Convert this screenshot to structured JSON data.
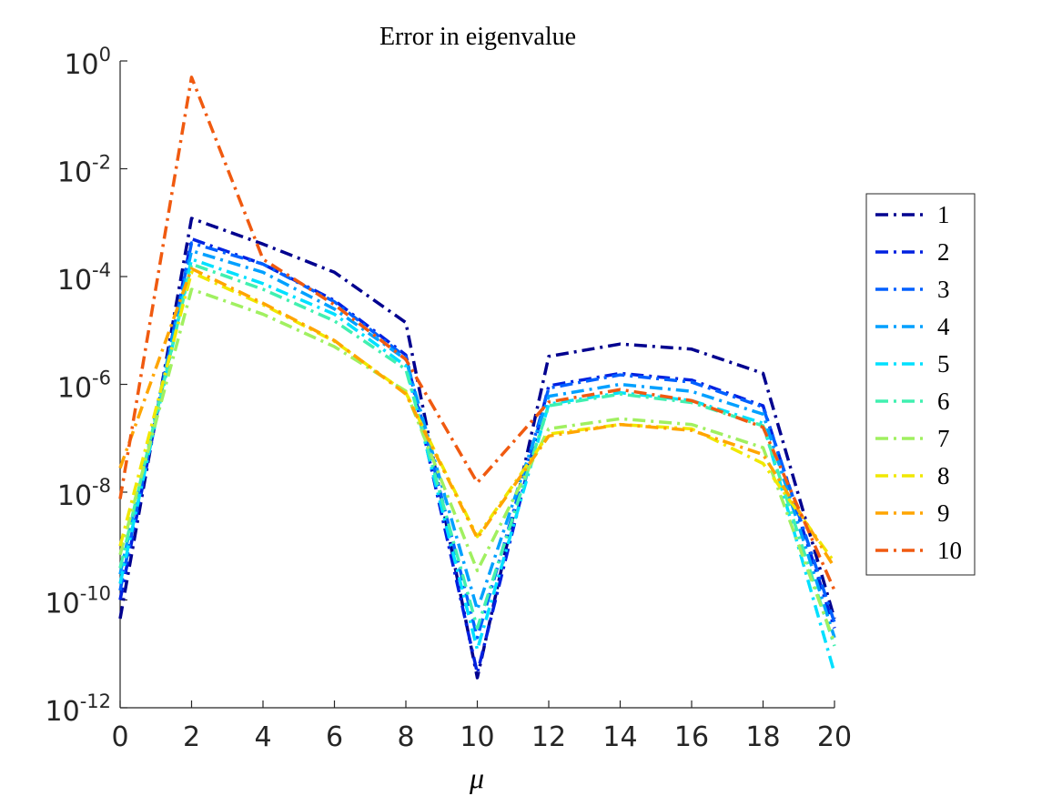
{
  "chart_data": {
    "type": "line",
    "title": "Error in eigenvalue",
    "xlabel": "μ",
    "x": [
      0,
      2,
      4,
      6,
      8,
      10,
      12,
      14,
      16,
      18,
      20
    ],
    "xlim": [
      0,
      20
    ],
    "xticks": [
      0,
      2,
      4,
      6,
      8,
      10,
      12,
      14,
      16,
      18,
      20
    ],
    "ylim": [
      1e-12,
      1
    ],
    "yscale": "log",
    "yticks": [
      {
        "value": 1e-12,
        "label": "10",
        "sup": "-12"
      },
      {
        "value": 1e-10,
        "label": "10",
        "sup": "-10"
      },
      {
        "value": 1e-08,
        "label": "10",
        "sup": "-8"
      },
      {
        "value": 1e-06,
        "label": "10",
        "sup": "-6"
      },
      {
        "value": 0.0001,
        "label": "10",
        "sup": "-4"
      },
      {
        "value": 0.01,
        "label": "10",
        "sup": "-2"
      },
      {
        "value": 1,
        "label": "10",
        "sup": "0"
      }
    ],
    "legend": "outside-right",
    "series": [
      {
        "name": "1",
        "color": "#00008f",
        "values": [
          4.5e-11,
          0.0012,
          0.0004,
          0.00012,
          1.4e-05,
          3.6e-12,
          3.3e-06,
          5.6e-06,
          4.5e-06,
          1.6e-06,
          4.5e-11
        ]
      },
      {
        "name": "2",
        "color": "#0020e0",
        "values": [
          1e-10,
          0.0005,
          0.00017,
          3.6e-05,
          3.5e-06,
          4.4e-12,
          9.4e-07,
          1.6e-06,
          1.2e-06,
          4e-07,
          3e-11
        ]
      },
      {
        "name": "3",
        "color": "#0060ff",
        "values": [
          1.5e-10,
          0.00042,
          0.00017,
          3.4e-05,
          3.2e-06,
          2e-11,
          8.5e-07,
          1.5e-06,
          1.1e-06,
          3.8e-07,
          3.8e-11
        ]
      },
      {
        "name": "4",
        "color": "#00a0ff",
        "values": [
          3e-10,
          0.0003,
          0.00012,
          2.5e-05,
          2.9e-06,
          6.6e-11,
          6e-07,
          1e-06,
          7.4e-07,
          2.8e-07,
          2e-11
        ]
      },
      {
        "name": "5",
        "color": "#00e0ff",
        "values": [
          2e-10,
          0.00021,
          7.4e-05,
          2e-05,
          2.2e-06,
          1.2e-11,
          4.3e-07,
          7e-07,
          5e-07,
          1.9e-07,
          4.4e-12
        ]
      },
      {
        "name": "6",
        "color": "#40f0b0",
        "values": [
          3.9e-10,
          0.00017,
          5.8e-05,
          1.5e-05,
          1.9e-06,
          3e-11,
          4e-07,
          6.6e-07,
          4.6e-07,
          1.7e-07,
          1.4e-11
        ]
      },
      {
        "name": "7",
        "color": "#a0f060",
        "values": [
          6.9e-10,
          5.8e-05,
          2e-05,
          5e-06,
          7.5e-07,
          3.5e-10,
          1.5e-07,
          2.3e-07,
          1.8e-07,
          6.7e-08,
          1.6e-11
        ]
      },
      {
        "name": "8",
        "color": "#f0e800",
        "values": [
          1e-09,
          0.00012,
          3e-05,
          6.3e-06,
          7e-07,
          1.5e-09,
          1.2e-07,
          1.8e-07,
          1.5e-07,
          3.4e-08,
          5e-10
        ]
      },
      {
        "name": "9",
        "color": "#ffa500",
        "values": [
          2.8e-08,
          0.00014,
          3.2e-05,
          6.5e-06,
          6.6e-07,
          1.4e-09,
          1.1e-07,
          1.8e-07,
          1.4e-07,
          5e-08,
          4e-10
        ]
      },
      {
        "name": "10",
        "color": "#f05a10",
        "values": [
          7.5e-09,
          0.5,
          0.00021,
          3e-05,
          2.9e-06,
          1.5e-08,
          4.7e-07,
          8e-07,
          5e-07,
          1.6e-07,
          1.5e-10
        ]
      }
    ]
  }
}
